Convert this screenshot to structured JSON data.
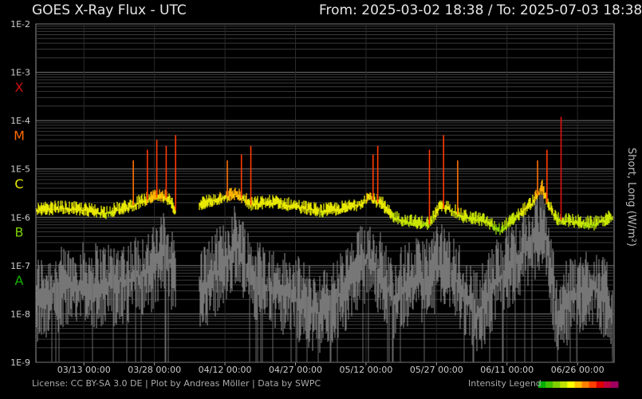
{
  "header": {
    "title": "GOES X-Ray Flux - UTC",
    "range": "From: 2025-03-02 18:38  /  To: 2025-07-03 18:38"
  },
  "footer": {
    "credits": "License: CC BY-SA 3.0 DE | Plot by Andreas Möller | Data by SWPC",
    "legend_label": "Intensity Legend",
    "legend_colors": [
      "#00b000",
      "#40c000",
      "#80d000",
      "#c0e000",
      "#ffff00",
      "#ffc000",
      "#ff8000",
      "#ff4000",
      "#e00000",
      "#c00040",
      "#a00060"
    ]
  },
  "chart_data": {
    "type": "line",
    "title": "GOES X-Ray Flux - UTC",
    "ylabel": "Short, Long (W/m²)",
    "yscale": "log",
    "ylim": [
      1e-09,
      0.01
    ],
    "xlim": [
      "2025-03-02 18:38",
      "2025-07-03 18:38"
    ],
    "y_ticks": [
      "1E-9",
      "1E-8",
      "1E-7",
      "1E-6",
      "1E-5",
      "1E-4",
      "1E-3",
      "1E-2"
    ],
    "x_ticks": [
      "03/13 00:00",
      "03/28 00:00",
      "04/12 00:00",
      "04/27 00:00",
      "05/12 00:00",
      "05/27 00:00",
      "06/11 00:00",
      "06/26 00:00"
    ],
    "class_labels": [
      {
        "label": "X",
        "color": "#d01010"
      },
      {
        "label": "M",
        "color": "#ff6a00"
      },
      {
        "label": "C",
        "color": "#e8e800"
      },
      {
        "label": "B",
        "color": "#7cd000"
      },
      {
        "label": "A",
        "color": "#16b000"
      }
    ],
    "series": [
      {
        "name": "Long",
        "x": [
          "03/02",
          "03/07",
          "03/12",
          "03/17",
          "03/22",
          "03/27",
          "03/30",
          "04/01",
          "04/04",
          "04/06",
          "04/11",
          "04/14",
          "04/17",
          "04/22",
          "04/27",
          "05/02",
          "05/07",
          "05/10",
          "05/12",
          "05/15",
          "05/17",
          "05/20",
          "05/25",
          "05/27",
          "05/29",
          "06/01",
          "06/04",
          "06/06",
          "06/09",
          "06/12",
          "06/16",
          "06/18",
          "06/19",
          "06/21",
          "06/24",
          "06/29",
          "07/03"
        ],
        "values": [
          1.3e-06,
          1.5e-06,
          1.4e-06,
          1.2e-06,
          1.6e-06,
          2.5e-06,
          2.5e-06,
          1.4e-06,
          null,
          1.8e-06,
          2.5e-06,
          3e-06,
          1.8e-06,
          2e-06,
          1.6e-06,
          1.3e-06,
          1.5e-06,
          1.8e-06,
          2.5e-06,
          1.8e-06,
          1e-06,
          8e-07,
          7e-07,
          1.5e-06,
          1.5e-06,
          1e-06,
          9e-07,
          8e-07,
          5e-07,
          9e-07,
          2e-06,
          4e-06,
          2e-06,
          9e-07,
          8e-07,
          7e-07,
          1e-06
        ]
      },
      {
        "name": "Short",
        "x": [
          "03/02",
          "03/07",
          "03/12",
          "03/17",
          "03/22",
          "03/27",
          "03/30",
          "04/01",
          "04/04",
          "04/06",
          "04/11",
          "04/14",
          "04/17",
          "04/22",
          "04/27",
          "05/02",
          "05/07",
          "05/10",
          "05/12",
          "05/15",
          "05/17",
          "05/20",
          "05/25",
          "05/27",
          "05/29",
          "06/01",
          "06/04",
          "06/06",
          "06/09",
          "06/12",
          "06/16",
          "06/18",
          "06/19",
          "06/21",
          "06/24",
          "06/29",
          "07/03"
        ],
        "values": [
          2e-08,
          3e-08,
          4e-08,
          4e-08,
          5e-08,
          8e-08,
          2e-07,
          5e-08,
          null,
          3e-08,
          1e-07,
          3e-07,
          6e-08,
          3e-08,
          2e-08,
          1e-08,
          3e-08,
          8e-08,
          1.5e-07,
          6e-08,
          2e-08,
          4e-08,
          6e-08,
          1e-07,
          8e-08,
          3e-08,
          1e-08,
          2e-08,
          6e-08,
          1.3e-07,
          3e-07,
          6e-07,
          3e-07,
          1e-08,
          2e-08,
          4e-08,
          1e-08
        ]
      }
    ],
    "flares": [
      {
        "date": "03/23",
        "peak": 1.5e-05
      },
      {
        "date": "03/26",
        "peak": 2.5e-05
      },
      {
        "date": "03/28",
        "peak": 4e-05
      },
      {
        "date": "03/30",
        "peak": 3e-05
      },
      {
        "date": "04/01",
        "peak": 5e-05
      },
      {
        "date": "04/12",
        "peak": 1.5e-05
      },
      {
        "date": "04/15",
        "peak": 2e-05
      },
      {
        "date": "04/17",
        "peak": 3e-05
      },
      {
        "date": "05/13",
        "peak": 2e-05
      },
      {
        "date": "05/14",
        "peak": 3e-05
      },
      {
        "date": "05/25",
        "peak": 2.5e-05
      },
      {
        "date": "05/28",
        "peak": 5e-05
      },
      {
        "date": "05/31",
        "peak": 1.5e-05
      },
      {
        "date": "06/17",
        "peak": 1.5e-05
      },
      {
        "date": "06/19",
        "peak": 2.5e-05
      },
      {
        "date": "06/22",
        "peak": 0.00012
      }
    ]
  }
}
